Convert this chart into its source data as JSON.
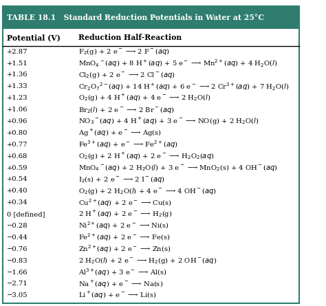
{
  "title": "TABLE 18.1   Standard Reduction Potentials in Water at 25°C",
  "header_bg": "#2e7d6e",
  "header_text_color": "white",
  "col1_header": "Potential (V)",
  "col2_header": "Reduction Half-Reaction",
  "rows": [
    [
      "+2.87",
      "F$_2$(g) + 2 e$^-$ ⟶ 2 F$^-$($aq$)"
    ],
    [
      "+1.51",
      "MnO$_4$$^-$($aq$) + 8 H$^+$($aq$) + 5 e$^-$ ⟶ Mn$^{2+}$($aq$) + 4 H$_2$O($l$)"
    ],
    [
      "+1.36",
      "Cl$_2$(g) + 2 e$^-$ ⟶ 2 Cl$^-$($aq$)"
    ],
    [
      "+1.33",
      "Cr$_2$O$_7$$^{2-}$($aq$) + 14 H$^+$($aq$) + 6 e$^-$ ⟶ 2 Cr$^{3+}$($aq$) + 7 H$_2$O($l$)"
    ],
    [
      "+1.23",
      "O$_2$(g) + 4 H$^+$($aq$) + 4 e$^-$ ⟶ 2 H$_2$O($l$)"
    ],
    [
      "+1.06",
      "Br$_2$($l$) + 2 e$^-$ ⟶ 2 Br$^-$($aq$)"
    ],
    [
      "+0.96",
      "NO$_3$$^-$($aq$) + 4 H$^+$($aq$) + 3 e$^-$ ⟶ NO(g) + 2 H$_2$O($l$)"
    ],
    [
      "+0.80",
      "Ag$^+$($aq$) + e$^-$ ⟶ Ag(s)"
    ],
    [
      "+0.77",
      "Fe$^{3+}$($aq$) + e$^-$ ⟶ Fe$^{2+}$($aq$)"
    ],
    [
      "+0.68",
      "O$_2$(g) + 2 H$^+$($aq$) + 2 e$^-$ ⟶ H$_2$O$_2$($aq$)"
    ],
    [
      "+0.59",
      "MnO$_4$$^-$($aq$) + 2 H$_2$O($l$) + 3 e$^-$ ⟶ MnO$_2$(s) + 4 OH$^-$($aq$)"
    ],
    [
      "+0.54",
      "I$_2$(s) + 2 e$^-$ ⟶ 2 I$^-$($aq$)"
    ],
    [
      "+0.40",
      "O$_2$(g) + 2 H$_2$O($l$) + 4 e$^-$ ⟶ 4 OH$^-$($aq$)"
    ],
    [
      "+0.34",
      "Cu$^{2+}$($aq$) + 2 e$^-$ ⟶ Cu(s)"
    ],
    [
      "0 [defined]",
      "2 H$^+$($aq$) + 2 e$^-$ ⟶ H$_2$(g)"
    ],
    [
      "−0.28",
      "Ni$^{2+}$($aq$) + 2 e$^-$ ⟶ Ni(s)"
    ],
    [
      "−0.44",
      "Fe$^{2+}$($aq$) + 2 e$^-$ ⟶ Fe(s)"
    ],
    [
      "−0.76",
      "Zn$^{2+}$($aq$) + 2 e$^-$ ⟶ Zn(s)"
    ],
    [
      "−0.83",
      "2 H$_2$O($l$) + 2 e$^-$ ⟶ H$_2$(g) + 2 OH$^-$($aq$)"
    ],
    [
      "−1.66",
      "Al$^{3+}$($aq$) + 3 e$^-$ ⟶ Al(s)"
    ],
    [
      "−2.71",
      "Na$^+$($aq$) + e$^-$ ⟶ Na(s)"
    ],
    [
      "−3.05",
      "Li$^+$($aq$) + e$^-$ ⟶ Li(s)"
    ]
  ],
  "bg_color": "white",
  "border_color": "#2e7d6e",
  "font_size": 7.2,
  "header_font_size": 7.8
}
